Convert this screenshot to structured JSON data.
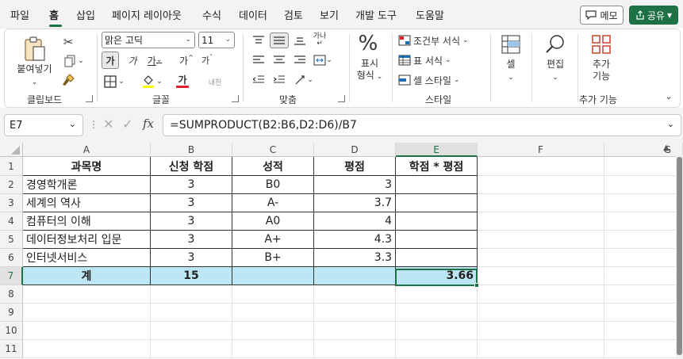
{
  "menu": {
    "tabs": [
      "파일",
      "홈",
      "삽입",
      "페이지 레이아웃",
      "수식",
      "데이터",
      "검토",
      "보기",
      "개발 도구",
      "도움말"
    ],
    "active_tab": "홈",
    "memo_label": "메모",
    "share_label": "공유"
  },
  "ribbon": {
    "clipboard": {
      "paste_label": "붙여넣기",
      "group_label": "클립보드"
    },
    "font": {
      "font_name": "맑은 고딕",
      "font_size": "11",
      "bold": "가",
      "italic": "가",
      "underline": "가",
      "grow": "가",
      "shrink": "가",
      "font_color": "가",
      "phonetic": "내천",
      "group_label": "글꼴"
    },
    "alignment": {
      "group_label": "맞춤",
      "wrap": "가나"
    },
    "number": {
      "format_label": "표시 형식",
      "format_line1": "표시",
      "format_line2": "형식",
      "symbol": "%",
      "group_label": ""
    },
    "styles": {
      "conditional_formatting": "조건부 서식",
      "format_as_table": "표 서식",
      "cell_styles": "셀 스타일",
      "group_label": "스타일"
    },
    "cells": {
      "label": "셀"
    },
    "editing": {
      "label": "편집"
    },
    "addins": {
      "label_line1": "추가",
      "label_line2": "기능",
      "group_label": "추가 기능"
    }
  },
  "formula_bar": {
    "name_box": "E7",
    "formula": "=SUMPRODUCT(B2:B6,D2:D6)/B7",
    "fx": "fx"
  },
  "grid": {
    "columns": [
      "A",
      "B",
      "C",
      "D",
      "E",
      "F",
      "G"
    ],
    "selected_column": "E",
    "rows": [
      "1",
      "2",
      "3",
      "4",
      "5",
      "6",
      "7",
      "8",
      "9",
      "10",
      "11"
    ],
    "selected_row": "7",
    "headers": [
      "과목명",
      "신청 학점",
      "성적",
      "평점",
      "학점 * 평점"
    ],
    "data_rows": [
      [
        "경영학개론",
        "3",
        "B0",
        "3",
        ""
      ],
      [
        "세계의 역사",
        "3",
        "A-",
        "3.7",
        ""
      ],
      [
        "컴퓨터의 이해",
        "3",
        "A0",
        "4",
        ""
      ],
      [
        "데이터정보처리 입문",
        "3",
        "A+",
        "4.3",
        ""
      ],
      [
        "인터넷서비스",
        "3",
        "B+",
        "3.3",
        ""
      ]
    ],
    "total_row": [
      "계",
      "15",
      "",
      "",
      "3.66"
    ]
  },
  "colors": {
    "accent": "#1e7145",
    "total_fill": "#bde6f4"
  }
}
